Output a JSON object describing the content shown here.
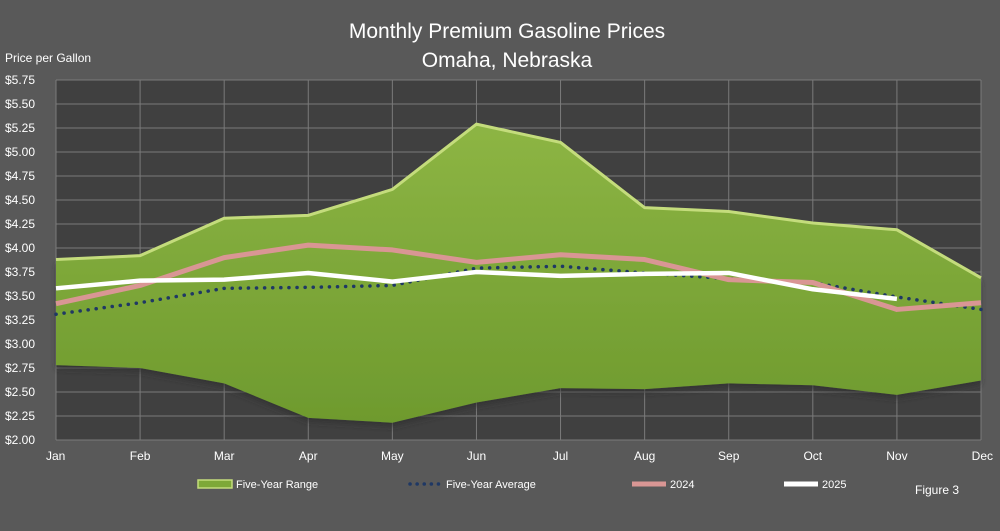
{
  "chart_data": {
    "type": "area",
    "title": "Monthly Premium Gasoline Prices",
    "subtitle": "Omaha, Nebraska",
    "ylabel": "Price per Gallon",
    "figure_label": "Figure 3",
    "ylim": [
      2.0,
      5.75
    ],
    "y_step": 0.25,
    "y_tick_labels": [
      "$2.00",
      "$2.25",
      "$2.50",
      "$2.75",
      "$3.00",
      "$3.25",
      "$3.50",
      "$3.75",
      "$4.00",
      "$4.25",
      "$4.50",
      "$4.75",
      "$5.00",
      "$5.25",
      "$5.50",
      "$5.75"
    ],
    "categories": [
      "Jan",
      "Feb",
      "Mar",
      "Apr",
      "May",
      "Jun",
      "Jul",
      "Aug",
      "Sep",
      "Oct",
      "Nov",
      "Dec"
    ],
    "grid": true,
    "legend_position": "bottom",
    "range": {
      "name": "Five-Year Range",
      "high": [
        3.88,
        3.92,
        4.31,
        4.34,
        4.61,
        5.29,
        5.1,
        4.42,
        4.38,
        4.26,
        4.19,
        3.69
      ],
      "low": [
        2.78,
        2.75,
        2.59,
        2.23,
        2.18,
        2.39,
        2.54,
        2.53,
        2.59,
        2.57,
        2.47,
        2.62
      ],
      "color": "#88ac3e",
      "edge_color": "#c4dc7c"
    },
    "series": [
      {
        "name": "Five-Year Average",
        "style": "dotted",
        "color": "#1f3864",
        "values": [
          3.31,
          3.43,
          3.58,
          3.59,
          3.61,
          3.79,
          3.81,
          3.74,
          3.68,
          3.64,
          3.49,
          3.36
        ]
      },
      {
        "name": "2024",
        "style": "solid",
        "color": "#d99694",
        "values": [
          3.42,
          3.61,
          3.9,
          4.03,
          3.98,
          3.85,
          3.93,
          3.88,
          3.67,
          3.64,
          3.36,
          3.43
        ]
      },
      {
        "name": "2025",
        "style": "solid",
        "color": "#ffffff",
        "values": [
          3.58,
          3.66,
          3.67,
          3.74,
          3.65,
          3.75,
          3.71,
          3.73,
          3.74,
          3.57,
          3.47,
          null
        ]
      }
    ]
  }
}
